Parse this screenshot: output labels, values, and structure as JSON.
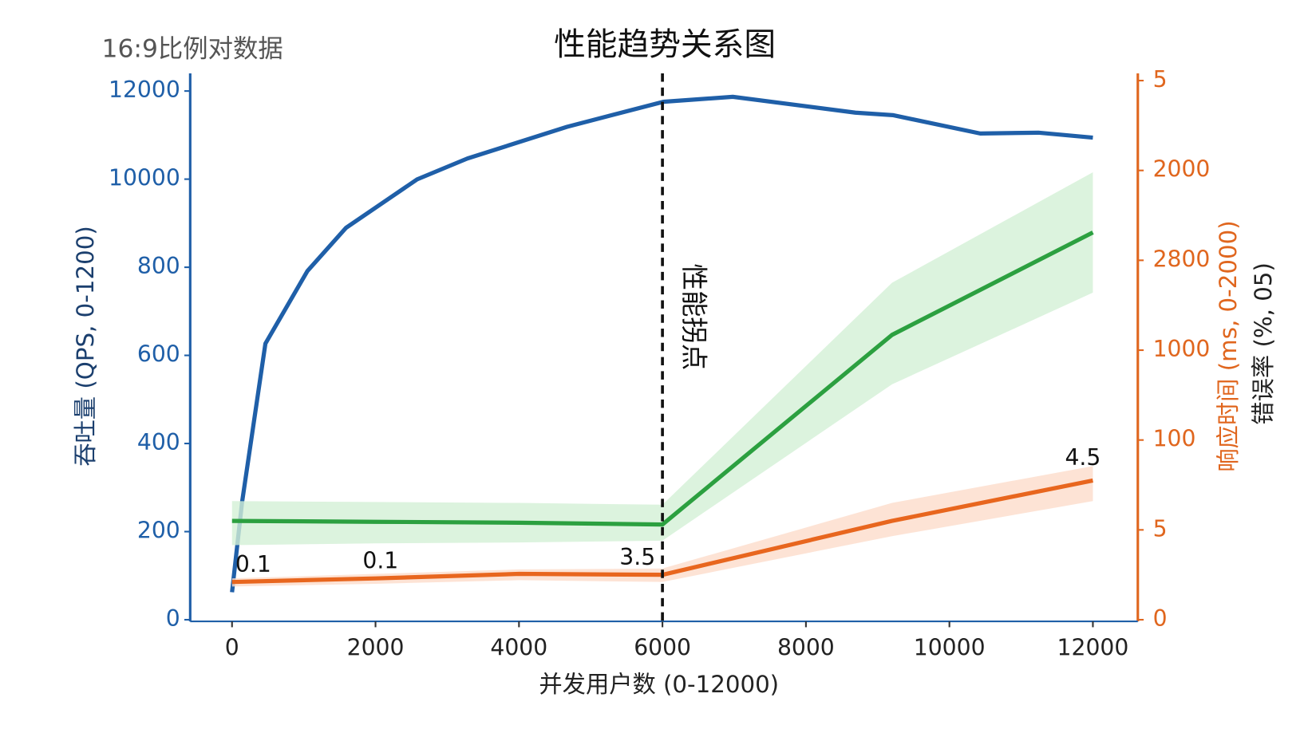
{
  "chart_data": {
    "type": "line",
    "corner_label": "16:9比例对数据",
    "title": "性能趋势关系图",
    "xlabel": "并发用户数 (0-12000)",
    "ylabel": "吞吐量 (QPS, 0-1200)",
    "y2label": "响应时间 (ms, 0-2000)",
    "y2label_secondary": "错误率 (%, 05)",
    "xlim": [
      -560,
      12580
    ],
    "xticks": [
      0,
      2000,
      4000,
      6000,
      8000,
      10000,
      12000
    ],
    "ylim": [
      0,
      12400
    ],
    "yticks": [
      0,
      {
        "value": 2000,
        "label": "200"
      },
      {
        "value": 4000,
        "label": "400"
      },
      {
        "value": 6000,
        "label": "600"
      },
      {
        "value": 8000,
        "label": "800"
      },
      10000,
      12000
    ],
    "y2lim": [
      0,
      6.08
    ],
    "y2ticks": [
      0,
      {
        "value": 1,
        "label": "5"
      },
      {
        "value": 2,
        "label": "100"
      },
      {
        "value": 3,
        "label": "1000"
      },
      {
        "value": 4,
        "label": "2800"
      },
      {
        "value": 5,
        "label": "2000"
      },
      {
        "value": 6,
        "label": "5"
      }
    ],
    "axis_color": "#1f5fa8",
    "axis2_color": "#e0661e",
    "vline": {
      "x": 6000,
      "label": "性能拐点"
    },
    "series": [
      {
        "color": "#1f5fa8",
        "axis": "y",
        "x": [
          0,
          140,
          465,
          1050,
          1590,
          2580,
          3280,
          4670,
          6010,
          6980,
          8690,
          9210,
          10430,
          11240,
          12000
        ],
        "values": [
          625,
          2670,
          6266,
          7913,
          8897,
          9995,
          10468,
          11188,
          11755,
          11869,
          11509,
          11453,
          11036,
          11055,
          10942
        ]
      },
      {
        "color": "#2ca040",
        "axis": "y2",
        "band_color": "#d3f0d6",
        "x": [
          0,
          2000,
          4000,
          6000,
          9200,
          12000
        ],
        "values": [
          1.1,
          1.09,
          1.08,
          1.06,
          3.17,
          4.31
        ],
        "lower": [
          0.83,
          0.85,
          0.86,
          0.88,
          2.62,
          3.64
        ],
        "upper": [
          1.32,
          1.31,
          1.3,
          1.28,
          3.75,
          4.98
        ]
      },
      {
        "color": "#e8661e",
        "axis": "y2",
        "band_color": "#fcdccb",
        "x": [
          0,
          2000,
          4000,
          6000,
          9200,
          12000
        ],
        "values": [
          0.42,
          0.46,
          0.51,
          0.5,
          1.1,
          1.55
        ],
        "lower": [
          0.37,
          0.4,
          0.44,
          0.42,
          0.93,
          1.32
        ],
        "upper": [
          0.46,
          0.51,
          0.56,
          0.57,
          1.3,
          1.71
        ],
        "point_labels": [
          {
            "x": 0,
            "text": "0.1"
          },
          {
            "x": 2000,
            "text": "0.1"
          },
          {
            "x": 6000,
            "text": "3.5"
          },
          {
            "x": 12000,
            "text": "4.5"
          }
        ]
      }
    ]
  }
}
